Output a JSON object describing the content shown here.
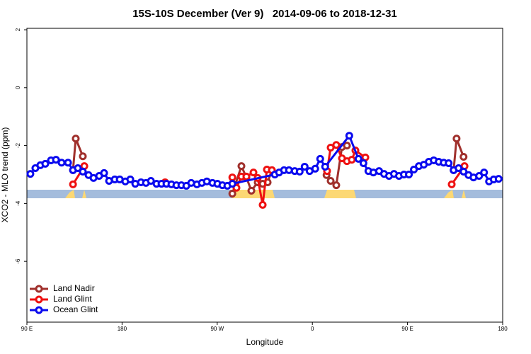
{
  "chart_data": {
    "type": "line",
    "title": "15S-10S December (Ver 9)   2014-09-06 to 2018-12-31",
    "x_label": "Longitude",
    "y_label": "XCO2 - MLO trend (ppm)",
    "xlim": [
      90,
      540
    ],
    "ylim": [
      -8.1,
      2.05
    ],
    "xticks": [
      {
        "value": 90,
        "label": "90 E"
      },
      180,
      {
        "value": 270,
        "label": "90 W"
      },
      {
        "value": 360,
        "label": "0"
      },
      {
        "value": 450,
        "label": "90 E"
      },
      {
        "value": 540,
        "label": "180"
      }
    ],
    "yticks": [
      -6,
      -4,
      -2,
      0,
      2
    ],
    "legend": "lower left",
    "series": [
      {
        "name": "Land Nadir",
        "color": "#a0302c",
        "x": [
          133.6,
          136.2,
          142.9,
          null,
          284.3,
          292.9,
          297.6,
          302.3,
          308.3,
          313.0,
          317.7,
          321.7,
          null,
          373.4,
          377.3,
          382.6,
          388.0,
          392.7,
          null,
          493.6,
          496.4,
          503.0
        ],
        "values": [
          -2.85,
          -1.76,
          -2.37,
          null,
          -3.66,
          -2.71,
          -3.1,
          -3.56,
          -3.27,
          -3.32,
          -3.27,
          -2.85,
          null,
          -3.02,
          -3.22,
          -3.37,
          -2.05,
          -2.0,
          null,
          -2.85,
          -1.76,
          -2.39
        ]
      },
      {
        "name": "Land Glint",
        "color": "#ee1111",
        "x": [
          133.6,
          144.3,
          null,
          220.7,
          null,
          284.3,
          288.2,
          292.9,
          297.6,
          304.3,
          308.3,
          313.0,
          317.0,
          321.7,
          null,
          373.9,
          377.3,
          382.6,
          388.0,
          392.7,
          397.3,
          400.7,
          410.1,
          null,
          491.8,
          503.9
        ],
        "values": [
          -3.34,
          -2.71,
          null,
          -3.27,
          null,
          -3.1,
          -3.46,
          -3.07,
          -3.07,
          -2.93,
          -3.12,
          -4.05,
          -2.83,
          -2.85,
          null,
          -2.88,
          -2.07,
          -1.98,
          -2.44,
          -2.54,
          -2.49,
          -2.17,
          -2.41,
          null,
          -3.34,
          -2.71
        ]
      },
      {
        "name": "Ocean Glint",
        "color": "#0a0aee",
        "x": [
          93.3,
          98.0,
          102.7,
          107.4,
          112.8,
          117.5,
          122.8,
          128.9,
          133.6,
          138.2,
          142.9,
          148.3,
          153.0,
          158.3,
          163.0,
          167.7,
          173.1,
          177.8,
          183.1,
          187.8,
          192.5,
          197.9,
          202.6,
          207.3,
          212.6,
          217.3,
          222.0,
          226.7,
          231.4,
          236.1,
          240.8,
          245.4,
          250.8,
          255.5,
          260.2,
          265.5,
          270.2,
          274.9,
          279.6,
          284.3,
          324.5,
          328.5,
          333.2,
          337.9,
          343.3,
          348.0,
          352.7,
          357.4,
          362.7,
          367.4,
          372.1,
          394.9,
          403.6,
          408.3,
          413.0,
          417.7,
          423.1,
          427.8,
          432.5,
          437.2,
          441.9,
          446.6,
          451.3,
          456.0,
          460.7,
          465.4,
          470.1,
          474.8,
          479.5,
          484.2,
          488.9,
          493.6,
          498.3,
          503.0,
          507.7,
          512.4,
          517.7,
          522.4,
          527.1,
          531.5,
          536.2
        ],
        "values": [
          -2.98,
          -2.78,
          -2.68,
          -2.63,
          -2.51,
          -2.49,
          -2.59,
          -2.59,
          -2.85,
          -2.78,
          -2.9,
          -3.02,
          -3.12,
          -3.05,
          -2.95,
          -3.22,
          -3.17,
          -3.17,
          -3.24,
          -3.17,
          -3.32,
          -3.27,
          -3.29,
          -3.22,
          -3.32,
          -3.32,
          -3.32,
          -3.34,
          -3.37,
          -3.37,
          -3.39,
          -3.29,
          -3.34,
          -3.29,
          -3.24,
          -3.29,
          -3.32,
          -3.37,
          -3.39,
          -3.32,
          -3.0,
          -2.93,
          -2.85,
          -2.85,
          -2.88,
          -2.9,
          -2.73,
          -2.88,
          -2.8,
          -2.46,
          -2.73,
          -1.66,
          -2.46,
          -2.61,
          -2.88,
          -2.93,
          -2.88,
          -2.98,
          -3.05,
          -2.98,
          -3.05,
          -3.0,
          -3.0,
          -2.83,
          -2.71,
          -2.66,
          -2.56,
          -2.51,
          -2.56,
          -2.59,
          -2.61,
          -2.85,
          -2.78,
          -2.9,
          -3.02,
          -3.1,
          -3.05,
          -2.93,
          -3.24,
          -3.17,
          -3.15
        ]
      }
    ]
  }
}
